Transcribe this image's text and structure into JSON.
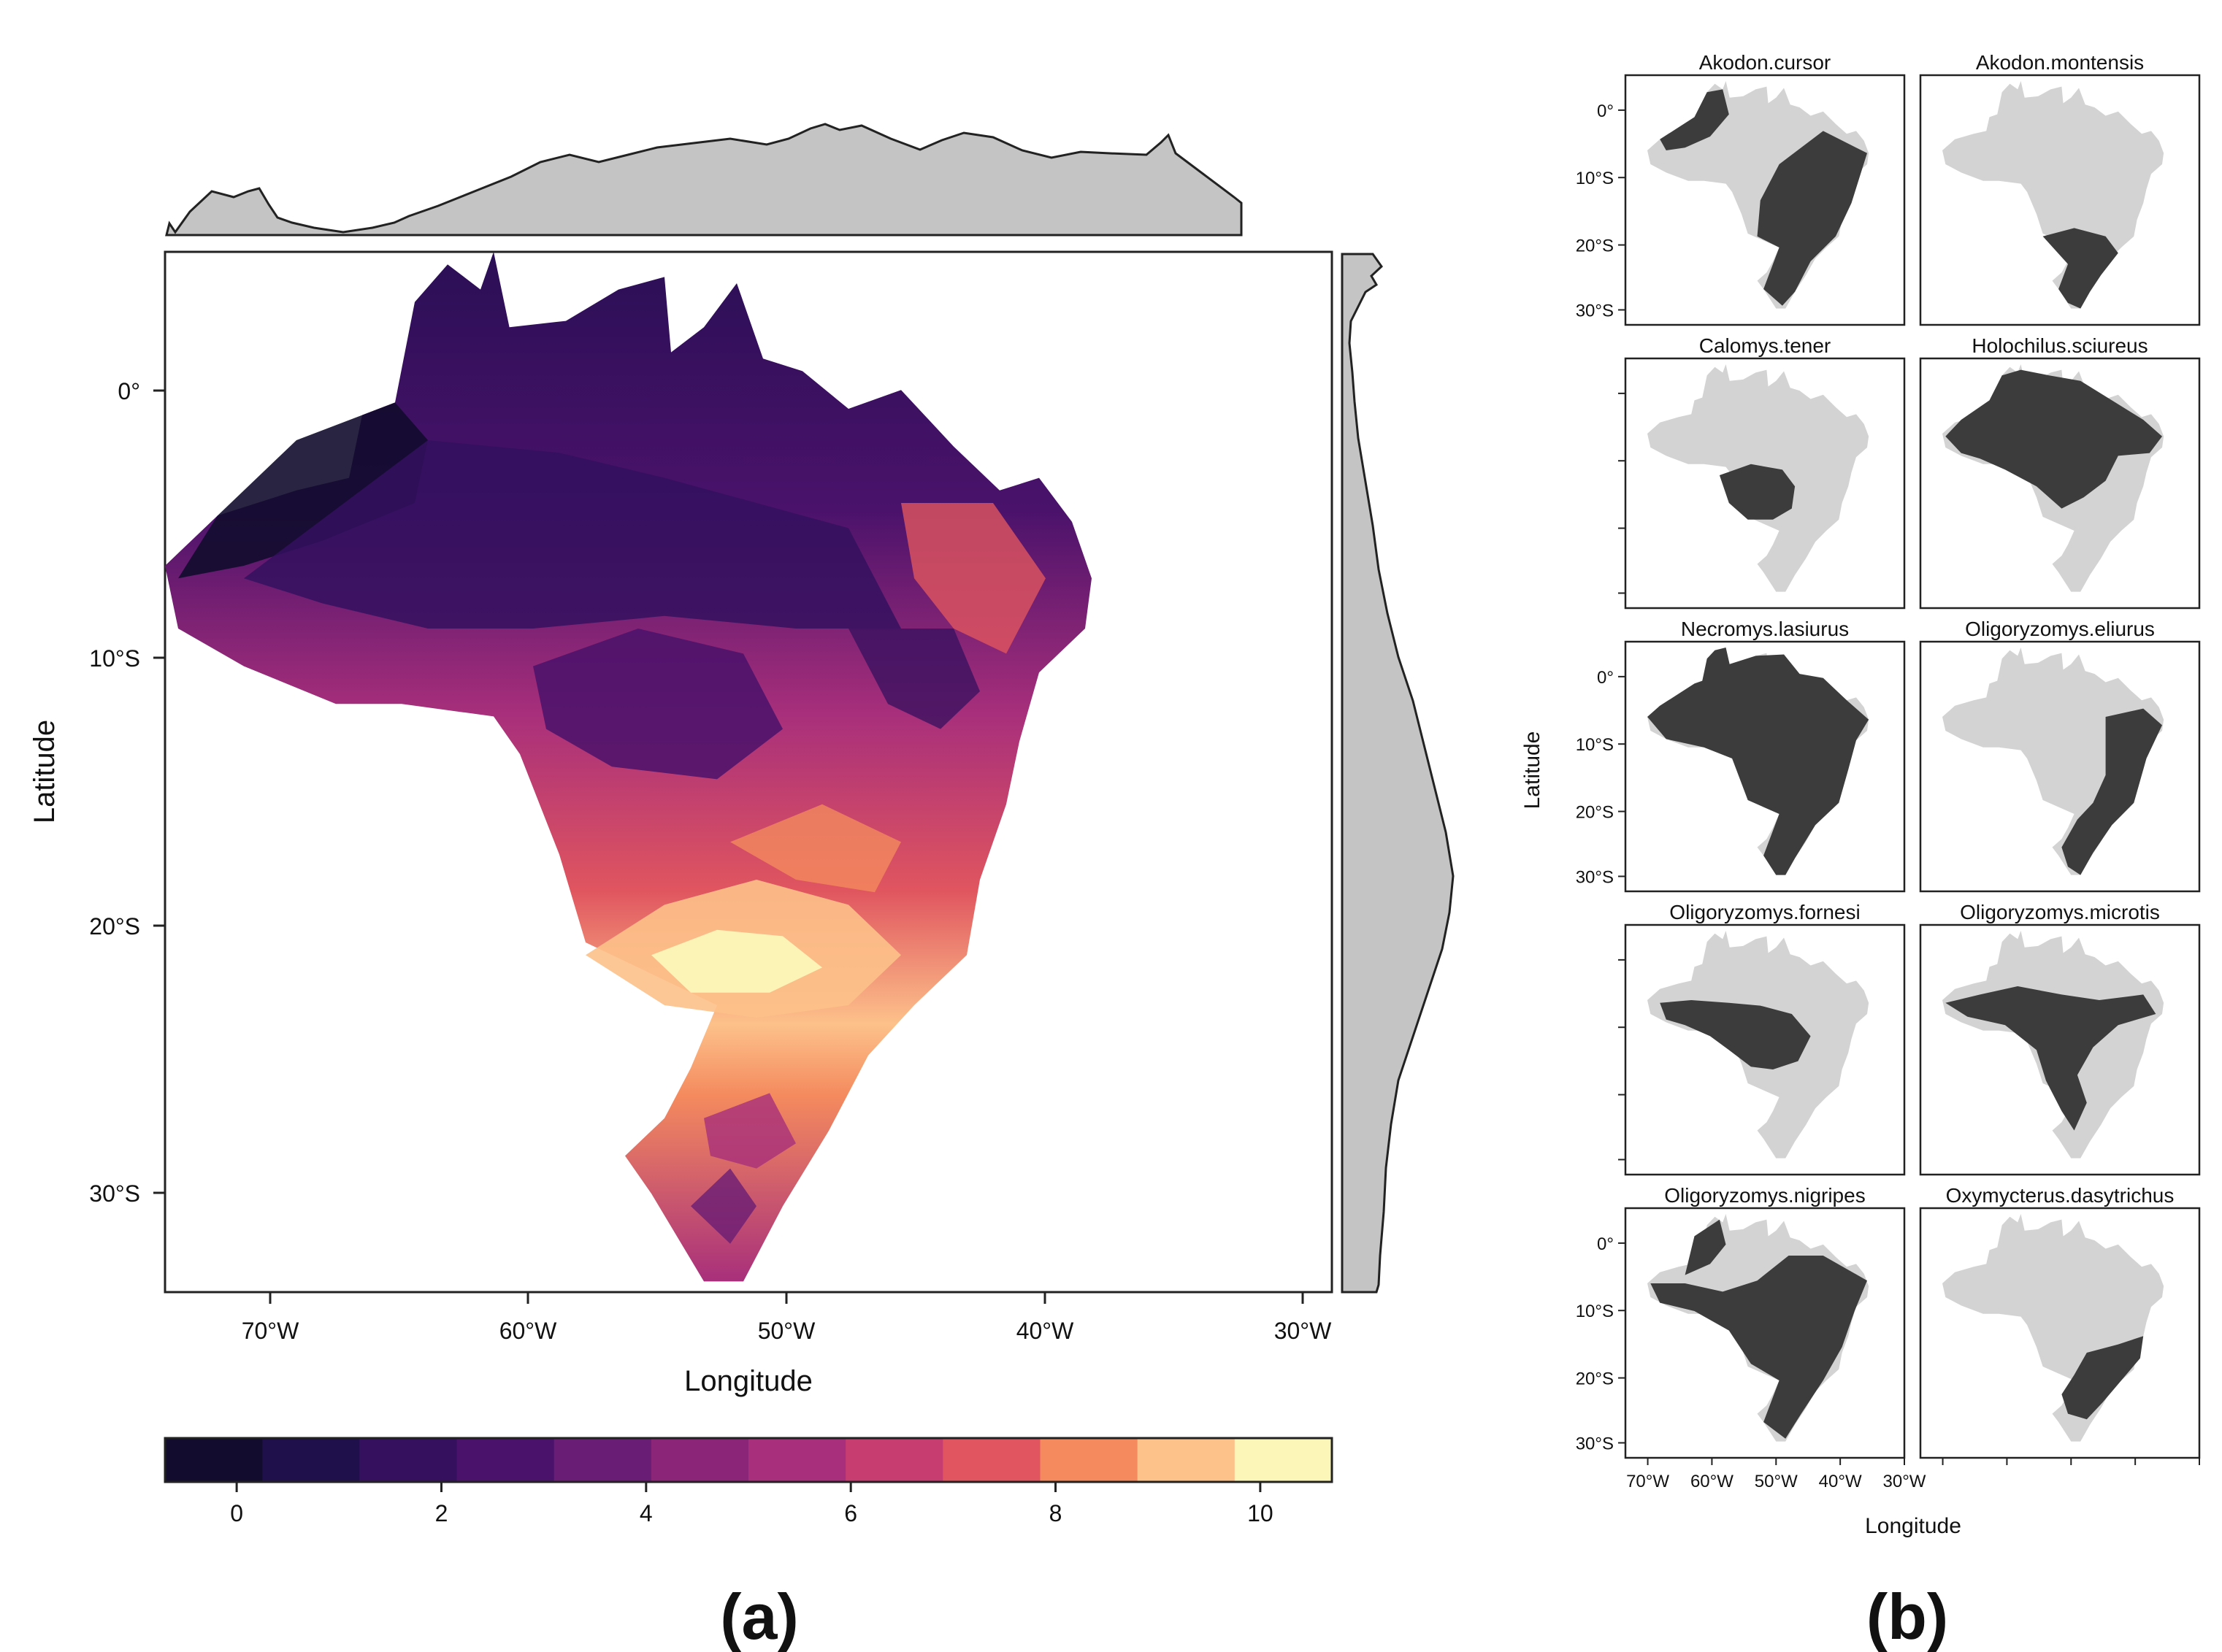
{
  "panel_a": {
    "label": "(a)",
    "xlabel": "Longitude",
    "ylabel": "Latitude",
    "x_ticks": [
      "70°W",
      "60°W",
      "50°W",
      "40°W",
      "30°W"
    ],
    "y_ticks": [
      "0°",
      "10°S",
      "20°S",
      "30°S"
    ],
    "colorbar": {
      "ticks": [
        "0",
        "2",
        "4",
        "6",
        "8",
        "10"
      ],
      "min": -0.7,
      "max": 10.7,
      "colors": [
        "#120c2e",
        "#1f0f4a",
        "#34105f",
        "#4a126b",
        "#6a1d74",
        "#8a2578",
        "#a82f7b",
        "#c83d70",
        "#e0555f",
        "#f48a5e",
        "#fdc18a",
        "#fcf6b8"
      ]
    },
    "map_extent": {
      "lon_min": -74,
      "lon_max": -29,
      "lat_min": -34,
      "lat_max": 5
    }
  },
  "panel_b": {
    "label": "(b)",
    "xlabel": "Longitude",
    "ylabel": "Latitude",
    "x_ticks": [
      "70°W",
      "60°W",
      "50°W",
      "40°W",
      "30°W"
    ],
    "y_ticks": [
      "0°",
      "10°S",
      "20°S",
      "30°S"
    ],
    "species": [
      "Akodon.cursor",
      "Akodon.montensis",
      "Calomys.tener",
      "Holochilus.sciureus",
      "Necromys.lasiurus",
      "Oligoryzomys.eliurus",
      "Oligoryzomys.fornesi",
      "Oligoryzomys.microtis",
      "Oligoryzomys.nigripes",
      "Oxymycterus.dasytrichus"
    ],
    "presence_color": "#3c3c3c",
    "absence_color": "#d3d3d3"
  }
}
